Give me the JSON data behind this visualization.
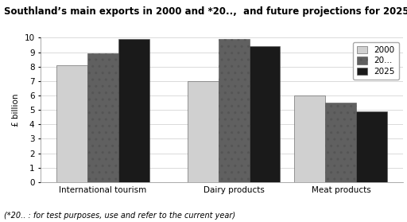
{
  "title": "Southland’s main exports in 2000 and *20..,  and future projections for 2025",
  "footnote": "(*20.. : for test purposes, use and refer to the current year)",
  "categories": [
    "International tourism",
    "Dairy products",
    "Meat products"
  ],
  "series": {
    "2000": [
      8.1,
      7.0,
      6.0
    ],
    "20...": [
      8.9,
      9.9,
      5.5
    ],
    "2025": [
      9.9,
      9.4,
      4.9
    ]
  },
  "ylabel": "£ billion",
  "ylim": [
    0,
    10
  ],
  "yticks": [
    0,
    1,
    2,
    3,
    4,
    5,
    6,
    7,
    8,
    9,
    10
  ],
  "legend_labels": [
    "2000",
    "20...",
    "2025"
  ],
  "bar_colors": [
    "#d0d0d0",
    "#606060",
    "#1a1a1a"
  ],
  "bar_hatches": [
    "",
    "..",
    ""
  ],
  "background_color": "#ffffff",
  "grid_color": "#cccccc",
  "title_fontsize": 8.5,
  "axis_fontsize": 7.5,
  "footnote_fontsize": 7.0,
  "bar_width": 0.26,
  "group_positions": [
    0,
    1.1,
    2.0
  ]
}
